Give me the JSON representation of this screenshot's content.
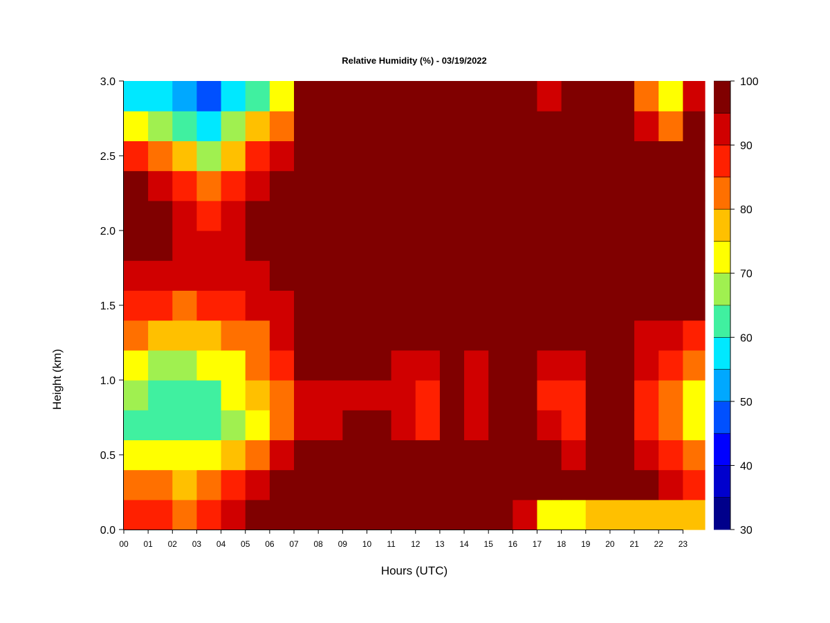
{
  "chart_data": {
    "type": "heatmap",
    "title": "Relative Humidity (%) - 03/19/2022",
    "xlabel": "Hours (UTC)",
    "ylabel": "Height (km)",
    "x_ticks": [
      "00",
      "01",
      "02",
      "03",
      "04",
      "05",
      "06",
      "07",
      "08",
      "09",
      "10",
      "11",
      "12",
      "13",
      "14",
      "15",
      "16",
      "17",
      "18",
      "19",
      "20",
      "21",
      "22",
      "23"
    ],
    "y_ticks": [
      "0.0",
      "0.5",
      "1.0",
      "1.5",
      "2.0",
      "2.5",
      "3.0"
    ],
    "xlim": [
      0,
      23.9
    ],
    "ylim": [
      0,
      3.0
    ],
    "colorbar": {
      "range": [
        30,
        100
      ],
      "ticks": [
        "30",
        "40",
        "50",
        "60",
        "70",
        "80",
        "90",
        "100"
      ],
      "bins": [
        {
          "from": 30,
          "to": 35,
          "color": "#00008b"
        },
        {
          "from": 35,
          "to": 40,
          "color": "#0000cd"
        },
        {
          "from": 40,
          "to": 45,
          "color": "#0000ff"
        },
        {
          "from": 45,
          "to": 50,
          "color": "#0050ff"
        },
        {
          "from": 50,
          "to": 55,
          "color": "#00a8ff"
        },
        {
          "from": 55,
          "to": 60,
          "color": "#00e8ff"
        },
        {
          "from": 60,
          "to": 65,
          "color": "#40f0a0"
        },
        {
          "from": 65,
          "to": 70,
          "color": "#a0f050"
        },
        {
          "from": 70,
          "to": 75,
          "color": "#ffff00"
        },
        {
          "from": 75,
          "to": 80,
          "color": "#ffc000"
        },
        {
          "from": 80,
          "to": 85,
          "color": "#ff7000"
        },
        {
          "from": 85,
          "to": 90,
          "color": "#ff2000"
        },
        {
          "from": 90,
          "to": 95,
          "color": "#d00000"
        },
        {
          "from": 95,
          "to": 100,
          "color": "#800000"
        }
      ]
    },
    "heights_km": [
      0.1,
      0.3,
      0.5,
      0.7,
      0.9,
      1.1,
      1.3,
      1.5,
      1.7,
      1.9,
      2.1,
      2.3,
      2.5,
      2.7,
      2.9
    ],
    "hours": [
      0,
      1,
      2,
      3,
      4,
      5,
      6,
      7,
      8,
      9,
      10,
      11,
      12,
      13,
      14,
      15,
      16,
      17,
      18,
      19,
      20,
      21,
      22,
      23
    ],
    "rh_grid": [
      [
        88,
        86,
        84,
        86,
        92,
        99,
        100,
        100,
        100,
        100,
        100,
        100,
        100,
        100,
        99,
        97,
        94,
        72,
        73,
        76,
        77,
        77,
        78,
        78
      ],
      [
        84,
        80,
        79,
        80,
        86,
        93,
        99,
        99,
        100,
        100,
        100,
        100,
        100,
        100,
        100,
        100,
        100,
        97,
        98,
        100,
        99,
        96,
        90,
        85
      ],
      [
        74,
        70,
        70,
        71,
        77,
        83,
        93,
        97,
        99,
        99,
        99,
        97,
        97,
        100,
        99,
        100,
        100,
        95,
        94,
        100,
        99,
        91,
        85,
        80
      ],
      [
        64,
        60,
        60,
        62,
        68,
        74,
        80,
        92,
        94,
        95,
        95,
        92,
        89,
        96,
        92,
        97,
        98,
        90,
        88,
        99,
        97,
        88,
        80,
        72
      ],
      [
        66,
        62,
        62,
        64,
        70,
        76,
        82,
        91,
        92,
        94,
        94,
        90,
        89,
        95,
        91,
        97,
        97,
        89,
        87,
        99,
        97,
        88,
        81,
        74
      ],
      [
        72,
        68,
        68,
        70,
        74,
        80,
        86,
        95,
        95,
        96,
        96,
        92,
        91,
        97,
        93,
        98,
        98,
        92,
        92,
        99,
        98,
        90,
        85,
        80
      ],
      [
        80,
        78,
        76,
        78,
        80,
        84,
        90,
        99,
        99,
        99,
        99,
        96,
        96,
        99,
        98,
        99,
        99,
        96,
        96,
        100,
        99,
        94,
        90,
        88
      ],
      [
        88,
        86,
        84,
        86,
        86,
        90,
        94,
        100,
        100,
        100,
        100,
        99,
        99,
        100,
        100,
        100,
        100,
        99,
        99,
        100,
        100,
        98,
        96,
        95
      ],
      [
        94,
        92,
        90,
        90,
        92,
        94,
        97,
        100,
        100,
        100,
        100,
        100,
        100,
        100,
        100,
        100,
        100,
        100,
        100,
        100,
        100,
        100,
        99,
        99
      ],
      [
        97,
        96,
        93,
        92,
        94,
        96,
        98,
        100,
        100,
        100,
        100,
        100,
        100,
        100,
        100,
        100,
        100,
        100,
        100,
        100,
        100,
        100,
        100,
        100
      ],
      [
        98,
        97,
        92,
        89,
        92,
        95,
        97,
        100,
        100,
        100,
        100,
        100,
        100,
        100,
        100,
        100,
        100,
        100,
        100,
        100,
        100,
        100,
        100,
        100
      ],
      [
        95,
        93,
        88,
        82,
        87,
        92,
        96,
        100,
        100,
        100,
        100,
        100,
        100,
        100,
        100,
        100,
        100,
        100,
        100,
        100,
        100,
        100,
        100,
        100
      ],
      [
        88,
        84,
        76,
        68,
        78,
        86,
        92,
        100,
        100,
        100,
        100,
        100,
        100,
        100,
        100,
        100,
        100,
        100,
        100,
        100,
        100,
        99,
        96,
        99
      ],
      [
        74,
        68,
        60,
        55,
        66,
        76,
        84,
        100,
        100,
        98,
        99,
        100,
        100,
        100,
        100,
        100,
        100,
        97,
        98,
        99,
        97,
        90,
        82,
        96
      ],
      [
        58,
        56,
        52,
        46,
        55,
        62,
        74,
        100,
        100,
        95,
        98,
        100,
        100,
        100,
        100,
        100,
        100,
        94,
        96,
        96,
        95,
        80,
        70,
        93
      ]
    ]
  }
}
